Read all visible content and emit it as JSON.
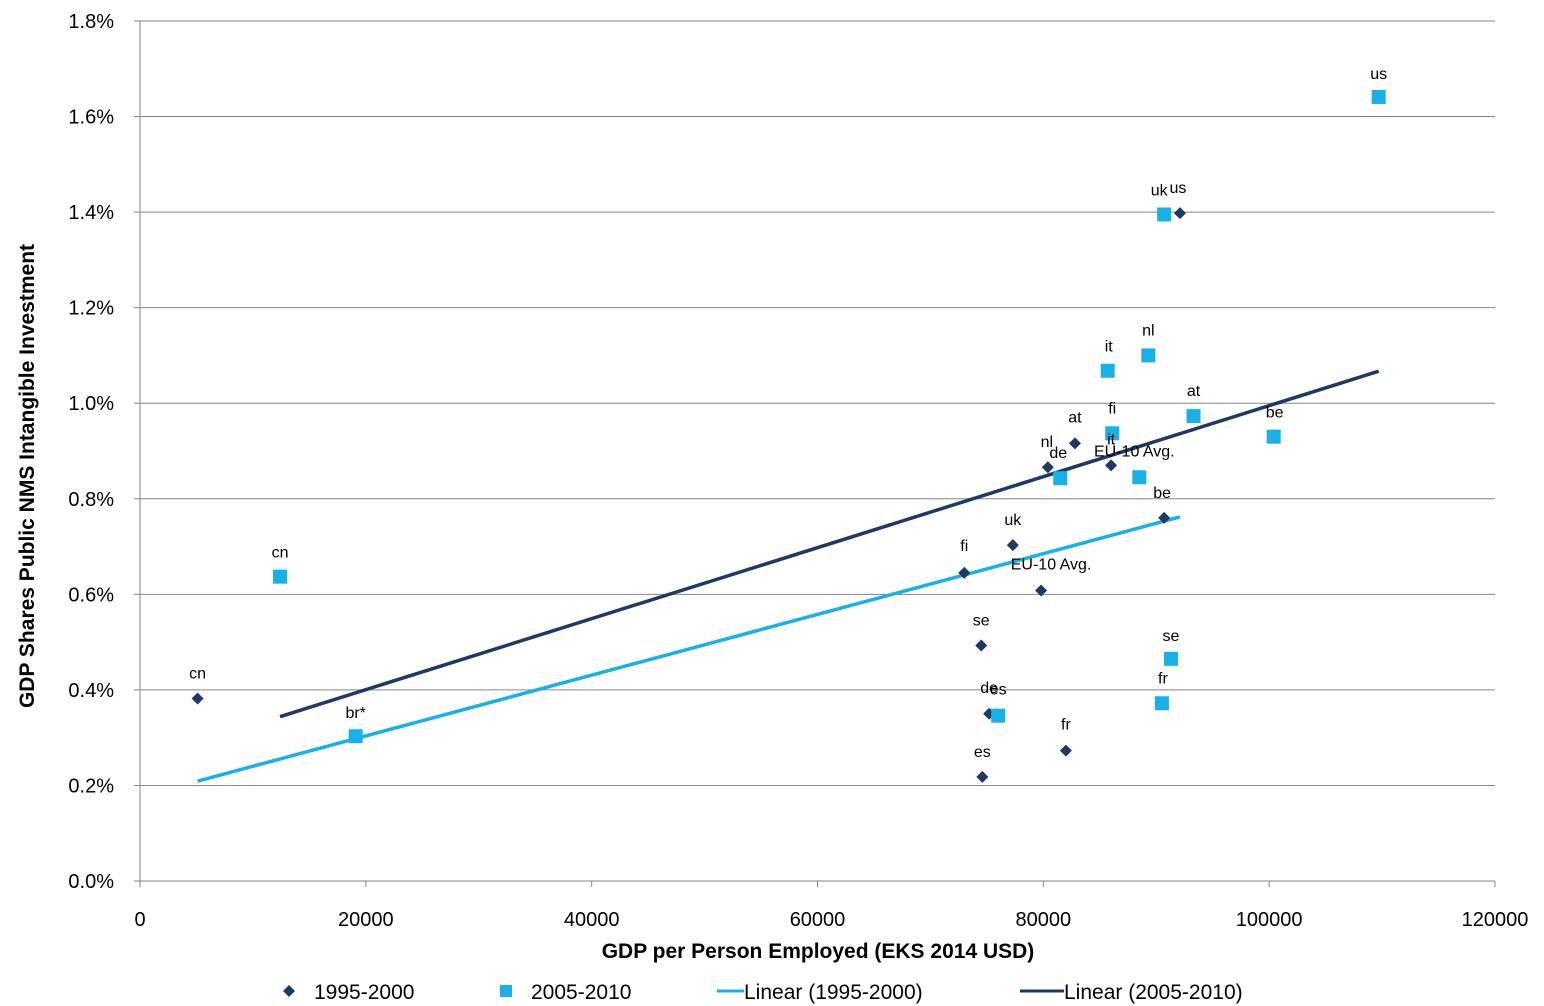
{
  "chart_data": {
    "type": "scatter",
    "title": "",
    "xlabel": "GDP per Person Employed (EKS 2014 USD)",
    "ylabel": "GDP Shares Public NMS Intangible Investment",
    "xlim": [
      0,
      120000
    ],
    "ylim": [
      0,
      0.018
    ],
    "x_ticks": [
      "0",
      "20000",
      "40000",
      "60000",
      "80000",
      "100000",
      "120000"
    ],
    "y_ticks": [
      "0.0%",
      "0.2%",
      "0.4%",
      "0.6%",
      "0.8%",
      "1.0%",
      "1.2%",
      "1.4%",
      "1.6%",
      "1.8%"
    ],
    "grid": true,
    "legend_position": "bottom",
    "series": [
      {
        "name": "1995-2000",
        "marker": "diamond",
        "color": "#1f3864",
        "points": [
          {
            "label": "cn",
            "x": 5100,
            "y": 0.00382
          },
          {
            "label": "fi",
            "x": 73000,
            "y": 0.00645
          },
          {
            "label": "uk",
            "x": 77300,
            "y": 0.00703
          },
          {
            "label": "EU-10  Avg.",
            "x": 79800,
            "y": 0.00608
          },
          {
            "label": "se",
            "x": 74500,
            "y": 0.00493
          },
          {
            "label": "de",
            "x": 75200,
            "y": 0.0035
          },
          {
            "label": "es",
            "x": 74600,
            "y": 0.00218
          },
          {
            "label": "fr",
            "x": 82000,
            "y": 0.00273
          },
          {
            "label": "nl",
            "x": 80400,
            "y": 0.00866
          },
          {
            "label": "at",
            "x": 82800,
            "y": 0.00916
          },
          {
            "label": "it",
            "x": 86000,
            "y": 0.0087
          },
          {
            "label": "be",
            "x": 90700,
            "y": 0.0076
          },
          {
            "label": "us",
            "x": 92100,
            "y": 0.01398
          }
        ]
      },
      {
        "name": "2005-2010",
        "marker": "square",
        "color": "#17b0e8",
        "points": [
          {
            "label": "cn",
            "x": 12400,
            "y": 0.00637
          },
          {
            "label": "br*",
            "x": 19100,
            "y": 0.00303
          },
          {
            "label": "es",
            "x": 76000,
            "y": 0.00346
          },
          {
            "label": "de",
            "x": 81500,
            "y": 0.00843
          },
          {
            "label": "it",
            "x": 85700,
            "y": 0.01068
          },
          {
            "label": "fi",
            "x": 86100,
            "y": 0.00937
          },
          {
            "label": "EU-10  Avg.",
            "x": 88500,
            "y": 0.00845
          },
          {
            "label": "nl",
            "x": 89300,
            "y": 0.011
          },
          {
            "label": "uk",
            "x": 90700,
            "y": 0.01395
          },
          {
            "label": "fr",
            "x": 90500,
            "y": 0.00372
          },
          {
            "label": "se",
            "x": 91300,
            "y": 0.00465
          },
          {
            "label": "at",
            "x": 93300,
            "y": 0.00973
          },
          {
            "label": "be",
            "x": 100400,
            "y": 0.0093
          },
          {
            "label": "us",
            "x": 109700,
            "y": 0.01641
          }
        ]
      }
    ],
    "trendlines": [
      {
        "name": "Linear (1995-2000)",
        "color": "#17b0e8",
        "x": [
          5100,
          92100
        ],
        "y": [
          0.00209,
          0.00762
        ]
      },
      {
        "name": "Linear (2005-2010)",
        "color": "#1f3864",
        "x": [
          12400,
          109700
        ],
        "y": [
          0.00344,
          0.01067
        ]
      }
    ]
  }
}
